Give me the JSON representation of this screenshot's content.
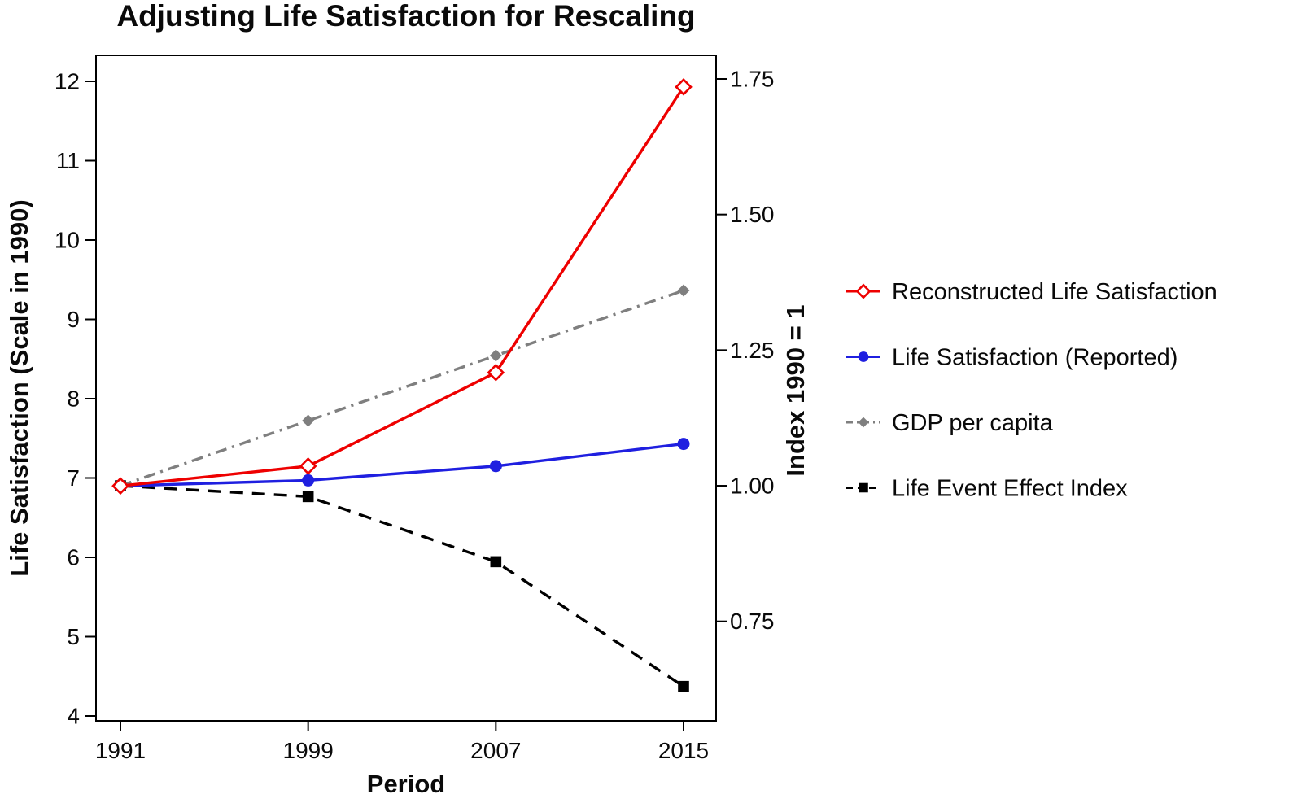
{
  "chart_data": {
    "type": "line",
    "title": "Adjusting Life Satisfaction for Rescaling",
    "xlabel": "Period",
    "ylabel_left": "Life Satisfaction (Scale in 1990)",
    "ylabel_right": "Index 1990 = 1",
    "x": [
      1991,
      1999,
      2007,
      2015
    ],
    "x_tick_labels": [
      "1991",
      "1999",
      "2007",
      "2015"
    ],
    "axes": {
      "left": {
        "min": 4,
        "max": 12,
        "ticks": [
          "4",
          "5",
          "6",
          "7",
          "8",
          "9",
          "10",
          "11",
          "12"
        ]
      },
      "right": {
        "min": 0.75,
        "max": 1.75,
        "ticks": [
          "0.75",
          "1.00",
          "1.25",
          "1.50",
          "1.75"
        ]
      },
      "x": {
        "min": 1991,
        "max": 2015
      }
    },
    "grid": false,
    "legend_position": "right",
    "series": [
      {
        "name": "GDP per capita",
        "axis": "right",
        "color": "#7f7f7f",
        "line": "dashdot",
        "marker": "diamond",
        "values": [
          1.0,
          1.12,
          1.24,
          1.36
        ]
      },
      {
        "name": "Life Event Effect Index",
        "axis": "right",
        "color": "#000000",
        "line": "dashed",
        "marker": "square",
        "values": [
          1.0,
          0.98,
          0.86,
          0.63
        ]
      },
      {
        "name": "Life Satisfaction (Reported)",
        "axis": "left",
        "color": "#1f1fe0",
        "line": "solid",
        "marker": "circle",
        "values": [
          6.9,
          6.97,
          7.15,
          7.43
        ]
      },
      {
        "name": "Reconstructed Life Satisfaction",
        "axis": "left",
        "color": "#ee0000",
        "line": "solid",
        "marker": "diamond-open",
        "values": [
          6.9,
          7.15,
          8.33,
          11.93
        ]
      }
    ],
    "legend_order": [
      "Reconstructed Life Satisfaction",
      "Life Satisfaction (Reported)",
      "GDP per capita",
      "Life Event Effect Index"
    ]
  }
}
